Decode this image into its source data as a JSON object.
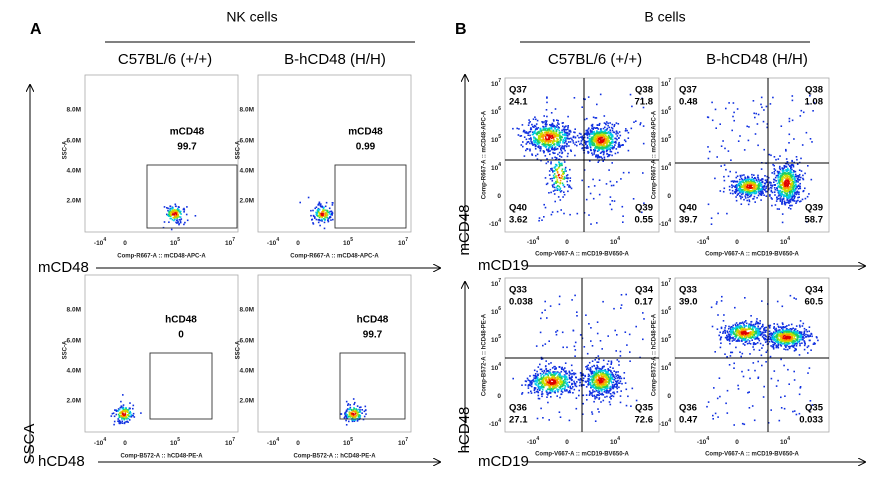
{
  "panel_a": {
    "letter": "A",
    "title": "NK cells",
    "columns": [
      "C57BL/6 (+/+)",
      "B-hCD48 (H/H)"
    ],
    "y_axis_title": "SSCA",
    "plot_y_label": "SSC-A",
    "y_ticks": [
      "8.0M",
      "6.0M",
      "4.0M",
      "2.0M"
    ],
    "x_ticks": [
      [
        "-10",
        "4"
      ],
      [
        "0"
      ],
      [
        "10",
        "5"
      ],
      [
        "10",
        "7"
      ]
    ],
    "rows": [
      {
        "row_title": "mCD48",
        "x_label": "Comp-R667-A :: mCD48-APC-A",
        "gates": [
          {
            "name": "mCD48",
            "value": "99.7"
          },
          {
            "name": "mCD48",
            "value": "0.99"
          }
        ]
      },
      {
        "row_title": "hCD48",
        "x_label": "Comp-B572-A :: hCD48-PE-A",
        "gates": [
          {
            "name": "hCD48",
            "value": "0"
          },
          {
            "name": "hCD48",
            "value": "99.7"
          }
        ]
      }
    ]
  },
  "panel_b": {
    "letter": "B",
    "title": "B cells",
    "columns": [
      "C57BL/6 (+/+)",
      "B-hCD48 (H/H)"
    ],
    "x_ticks": [
      [
        "-10",
        "4"
      ],
      [
        "0"
      ],
      [
        "10",
        "4"
      ]
    ],
    "y_ticks": [
      [
        "10",
        "7"
      ],
      [
        "10",
        "6"
      ],
      [
        "10",
        "5"
      ],
      [
        "10",
        "4"
      ],
      [
        "0"
      ],
      [
        "-10",
        "4"
      ]
    ],
    "rows": [
      {
        "row_title": "mCD48",
        "x_title": "mCD19",
        "x_label": "Comp-V667-A :: mCD19-BV650-A",
        "y_label": "Comp-R667-A :: mCD48-APC-A",
        "plots": [
          {
            "quadrants": [
              [
                "Q37",
                "24.1"
              ],
              [
                "Q38",
                "71.8"
              ],
              [
                "Q40",
                "3.62"
              ],
              [
                "Q39",
                "0.55"
              ]
            ]
          },
          {
            "quadrants": [
              [
                "Q37",
                "0.48"
              ],
              [
                "Q38",
                "1.08"
              ],
              [
                "Q40",
                "39.7"
              ],
              [
                "Q39",
                "58.7"
              ]
            ]
          }
        ]
      },
      {
        "row_title": "hCD48",
        "x_title": "mCD19",
        "x_label": "Comp-V667-A :: mCD19-BV650-A",
        "y_label": "Comp-B572-A :: hCD48-PE-A",
        "plots": [
          {
            "quadrants": [
              [
                "Q33",
                "0.038"
              ],
              [
                "Q34",
                "0.17"
              ],
              [
                "Q36",
                "27.1"
              ],
              [
                "Q35",
                "72.6"
              ]
            ]
          },
          {
            "quadrants": [
              [
                "Q33",
                "39.0"
              ],
              [
                "Q34",
                "60.5"
              ],
              [
                "Q36",
                "0.47"
              ],
              [
                "Q35",
                "0.033"
              ]
            ]
          }
        ]
      }
    ]
  }
}
